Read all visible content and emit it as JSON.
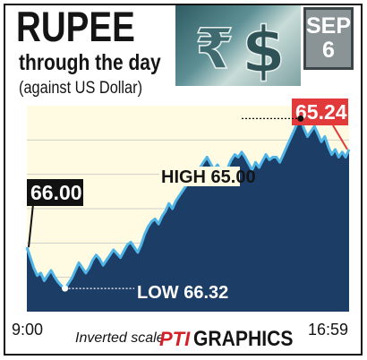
{
  "header": {
    "title": "RUPEE",
    "subtitle": "through the day",
    "note": "(against US Dollar)",
    "date_month": "SEP",
    "date_day": "6"
  },
  "footer": {
    "scale_note": "Inverted scale",
    "brand_logo": "PTI",
    "brand_word": "GRAPHICS"
  },
  "colors": {
    "fill": "#1c3d66",
    "line": "#4fb4e6",
    "background": "#fffbe3",
    "grid": "#cfcfc8",
    "open_label_bg": "#111111",
    "close_label_bg": "#e23a3a",
    "label_text": "#ffffff"
  },
  "icons": [
    "rupee-dollar-icon"
  ],
  "chart_data": {
    "type": "area",
    "title": "RUPEE through the day",
    "subtitle": "(against US Dollar)",
    "xlabel": "",
    "ylabel": "",
    "y_inverted": true,
    "ylim": [
      66.5,
      64.9
    ],
    "grid": "horizontal",
    "x_ticks": [
      "9:00",
      "16:59"
    ],
    "open": {
      "time": "9:00",
      "value": 66.0,
      "label": "66.00"
    },
    "close": {
      "time": "16:59",
      "value": 65.24,
      "label": "65.24"
    },
    "high": {
      "value": 65.0,
      "label": "HIGH 65.00"
    },
    "low": {
      "value": 66.32,
      "label": "LOW 66.32"
    },
    "series": [
      {
        "values": [
          66.0,
          66.08,
          66.16,
          66.22,
          66.2,
          66.26,
          66.22,
          66.18,
          66.23,
          66.27,
          66.3,
          66.32,
          66.28,
          66.24,
          66.18,
          66.12,
          66.16,
          66.2,
          66.16,
          66.1,
          66.06,
          66.09,
          66.14,
          66.1,
          66.06,
          66.02,
          66.05,
          66.08,
          66.03,
          65.98,
          65.96,
          66.0,
          66.04,
          65.98,
          65.9,
          65.84,
          65.8,
          65.78,
          65.82,
          65.76,
          65.72,
          65.66,
          65.7,
          65.64,
          65.6,
          65.56,
          65.52,
          65.48,
          65.42,
          65.44,
          65.38,
          65.34,
          65.3,
          65.35,
          65.4,
          65.36,
          65.4,
          65.44,
          65.38,
          65.32,
          65.28,
          65.3,
          65.26,
          65.3,
          65.35,
          65.4,
          65.34,
          65.38,
          65.33,
          65.28,
          65.32,
          65.3,
          65.3,
          65.34,
          65.28,
          65.22,
          65.16,
          65.1,
          65.04,
          65.0,
          65.08,
          65.14,
          65.1,
          65.06,
          65.12,
          65.18,
          65.14,
          65.22,
          65.28,
          65.24,
          65.3,
          65.26,
          65.3,
          65.24
        ]
      }
    ]
  }
}
